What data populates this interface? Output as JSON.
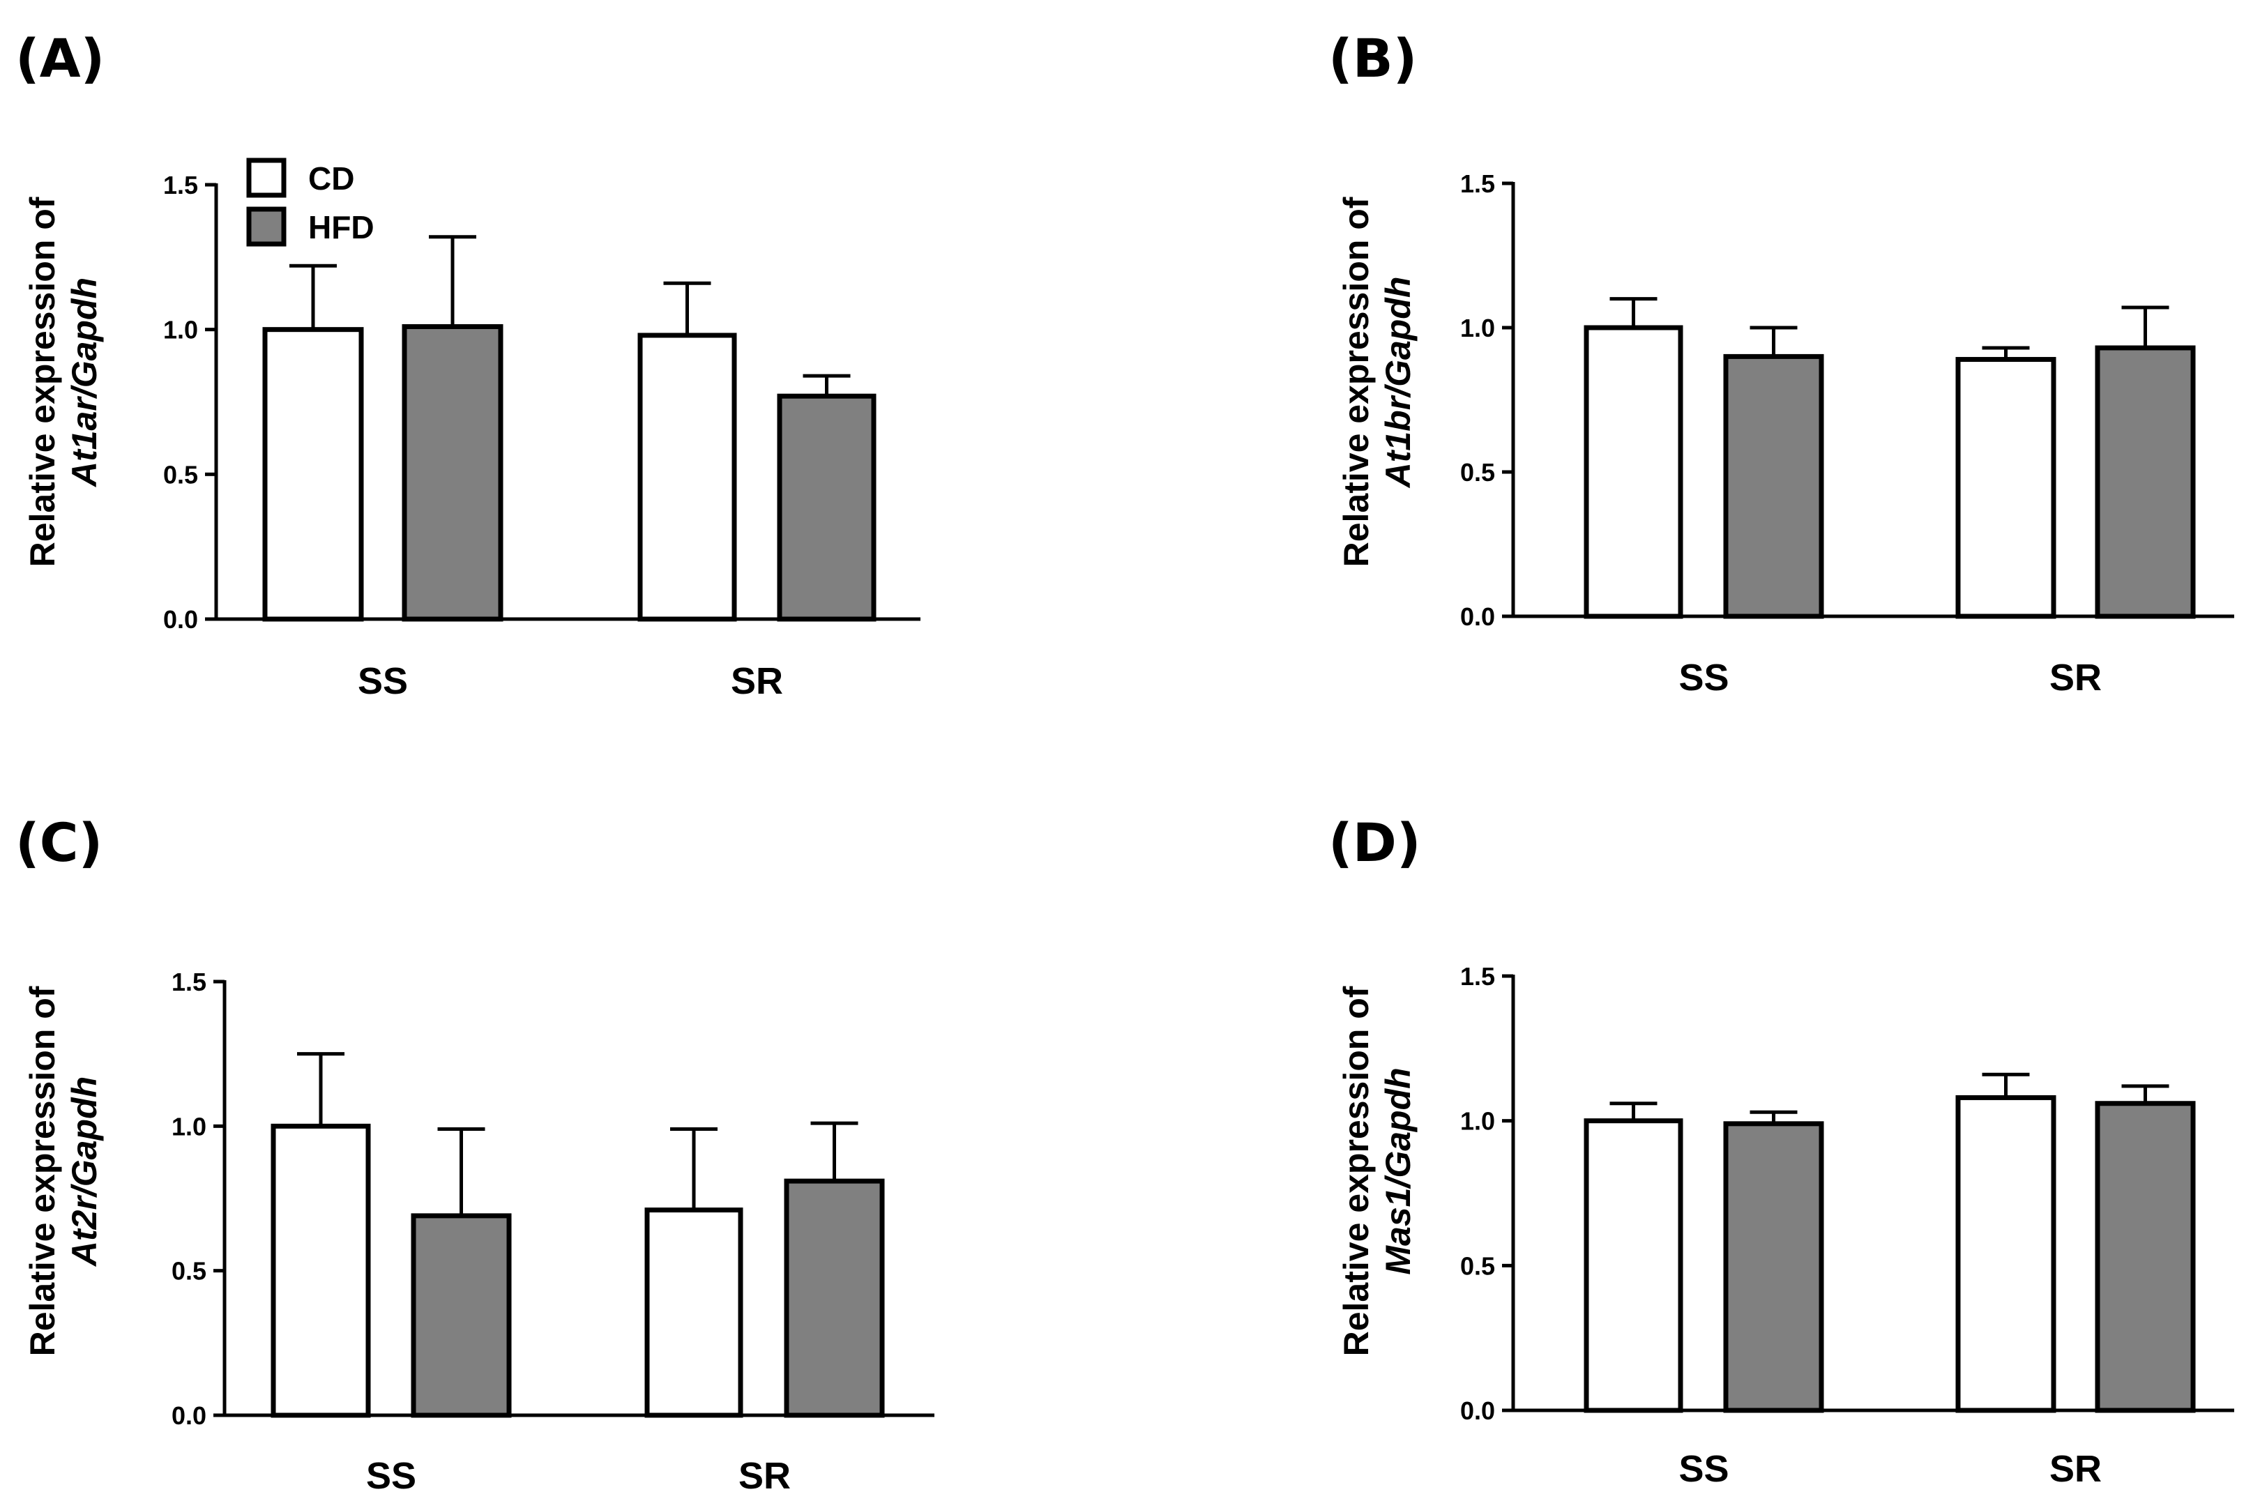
{
  "figure": {
    "legend": {
      "items": [
        {
          "label": "CD",
          "color": "#ffffff"
        },
        {
          "label": "HFD",
          "color": "#808080"
        }
      ]
    }
  },
  "chart_data": [
    {
      "panel": "(A)",
      "type": "bar",
      "ylabel_line1": "Relative expression of",
      "ylabel_line2": "At1ar/Gapdh",
      "ylim": [
        0,
        1.5
      ],
      "yticks": [
        "0.0",
        "0.5",
        "1.0",
        "1.5"
      ],
      "categories": [
        "SS",
        "SR"
      ],
      "series": [
        {
          "name": "CD",
          "color": "#ffffff",
          "values": [
            1.0,
            0.98
          ],
          "errors": [
            0.22,
            0.18
          ]
        },
        {
          "name": "HFD",
          "color": "#808080",
          "values": [
            1.01,
            0.77
          ],
          "errors": [
            0.31,
            0.07
          ]
        }
      ],
      "legend": true
    },
    {
      "panel": "(B)",
      "type": "bar",
      "ylabel_line1": "Relative expression of",
      "ylabel_line2": "At1br/Gapdh",
      "ylim": [
        0,
        1.5
      ],
      "yticks": [
        "0.0",
        "0.5",
        "1.0",
        "1.5"
      ],
      "categories": [
        "SS",
        "SR"
      ],
      "series": [
        {
          "name": "CD",
          "color": "#ffffff",
          "values": [
            1.0,
            0.89
          ],
          "errors": [
            0.1,
            0.04
          ]
        },
        {
          "name": "HFD",
          "color": "#808080",
          "values": [
            0.9,
            0.93
          ],
          "errors": [
            0.1,
            0.14
          ]
        }
      ],
      "legend": false
    },
    {
      "panel": "(C)",
      "type": "bar",
      "ylabel_line1": "Relative expression of",
      "ylabel_line2": "At2r/Gapdh",
      "ylim": [
        0,
        1.5
      ],
      "yticks": [
        "0.0",
        "0.5",
        "1.0",
        "1.5"
      ],
      "categories": [
        "SS",
        "SR"
      ],
      "series": [
        {
          "name": "CD",
          "color": "#ffffff",
          "values": [
            1.0,
            0.71
          ],
          "errors": [
            0.25,
            0.28
          ]
        },
        {
          "name": "HFD",
          "color": "#808080",
          "values": [
            0.69,
            0.81
          ],
          "errors": [
            0.3,
            0.2
          ]
        }
      ],
      "legend": false
    },
    {
      "panel": "(D)",
      "type": "bar",
      "ylabel_line1": "Relative expression of",
      "ylabel_line2": "Mas1/Gapdh",
      "ylim": [
        0,
        1.5
      ],
      "yticks": [
        "0.0",
        "0.5",
        "1.0",
        "1.5"
      ],
      "categories": [
        "SS",
        "SR"
      ],
      "series": [
        {
          "name": "CD",
          "color": "#ffffff",
          "values": [
            1.0,
            1.08
          ],
          "errors": [
            0.06,
            0.08
          ]
        },
        {
          "name": "HFD",
          "color": "#808080",
          "values": [
            0.99,
            1.06
          ],
          "errors": [
            0.04,
            0.06
          ]
        }
      ],
      "legend": false
    }
  ]
}
